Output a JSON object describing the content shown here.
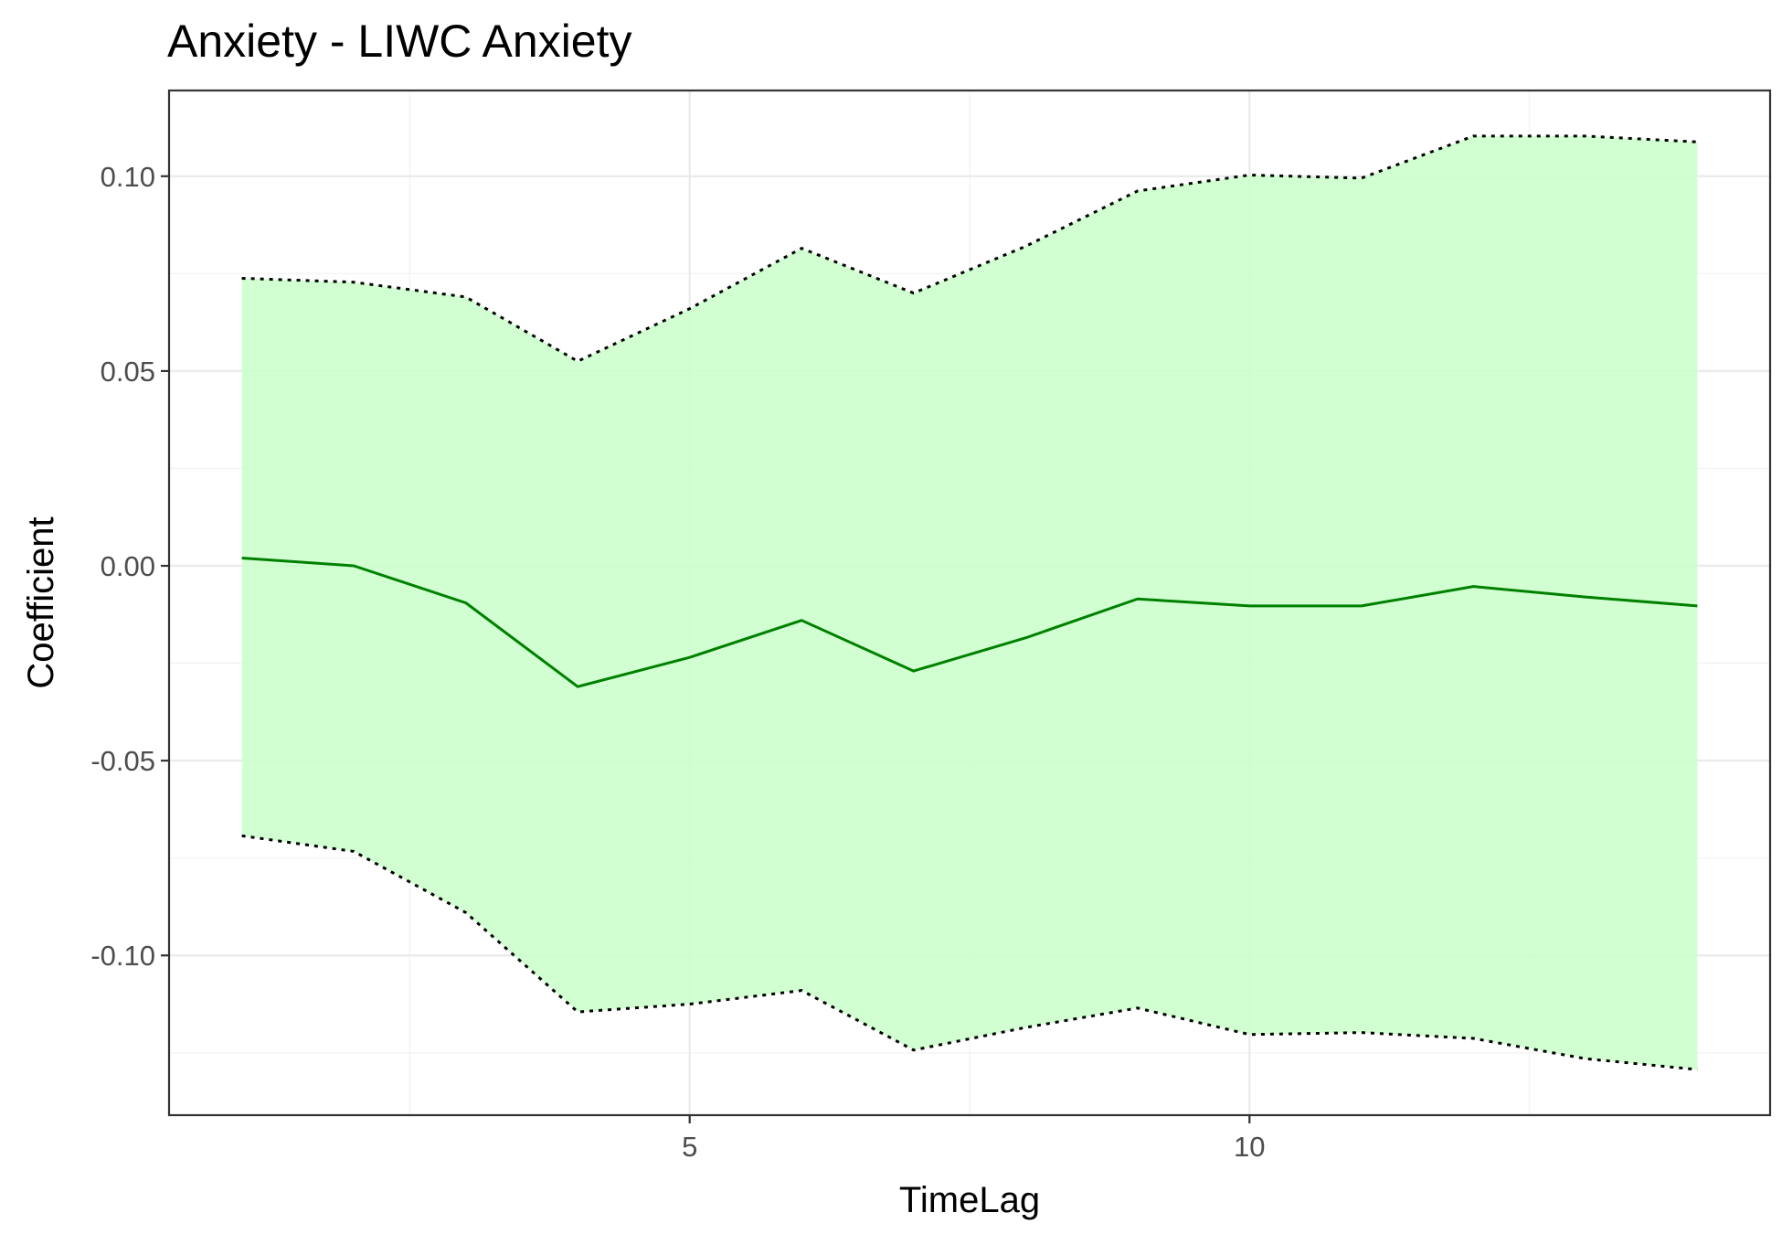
{
  "chart_data": {
    "type": "line",
    "title": "Anxiety - LIWC Anxiety",
    "xlabel": "TimeLag",
    "ylabel": "Coefficient",
    "xlim": [
      0.35,
      14.65
    ],
    "ylim": [
      -0.141,
      0.122
    ],
    "x_ticks": [
      5,
      10
    ],
    "x_tick_labels": [
      "5",
      "10"
    ],
    "y_ticks": [
      -0.1,
      -0.05,
      0.0,
      0.05,
      0.1
    ],
    "y_tick_labels": [
      "-0.10",
      "-0.05",
      "0.00",
      "0.05",
      "0.10"
    ],
    "x_minor_ticks": [
      2.5,
      7.5,
      12.5
    ],
    "y_minor_ticks": [
      -0.125,
      -0.075,
      -0.025,
      0.025,
      0.075
    ],
    "grid": true,
    "legend": "none",
    "x": [
      1,
      2,
      3,
      4,
      5,
      6,
      7,
      8,
      9,
      10,
      11,
      12,
      13,
      14
    ],
    "series": [
      {
        "role": "estimate",
        "values": [
          0.002,
          0.0,
          -0.0095,
          -0.031,
          -0.0235,
          -0.014,
          -0.027,
          -0.0185,
          -0.0085,
          -0.0103,
          -0.0103,
          -0.0053,
          -0.008,
          -0.0103
        ]
      },
      {
        "role": "upper",
        "values": [
          0.0738,
          0.0728,
          0.069,
          0.0525,
          0.066,
          0.0815,
          0.07,
          0.082,
          0.0962,
          0.1003,
          0.0995,
          0.1103,
          0.1103,
          0.1088
        ]
      },
      {
        "role": "lower",
        "values": [
          -0.0693,
          -0.0733,
          -0.089,
          -0.1145,
          -0.1125,
          -0.109,
          -0.1243,
          -0.1185,
          -0.1135,
          -0.1203,
          -0.1198,
          -0.1213,
          -0.1265,
          -0.1293
        ]
      }
    ],
    "colors": {
      "ribbon": "#ccffcc",
      "estimate_line": "#008000",
      "bound_line": "#000000",
      "grid_major": "#ebebeb",
      "grid_minor": "#f5f5f5",
      "panel_border": "#333333",
      "tick_text": "#4d4d4d"
    }
  }
}
